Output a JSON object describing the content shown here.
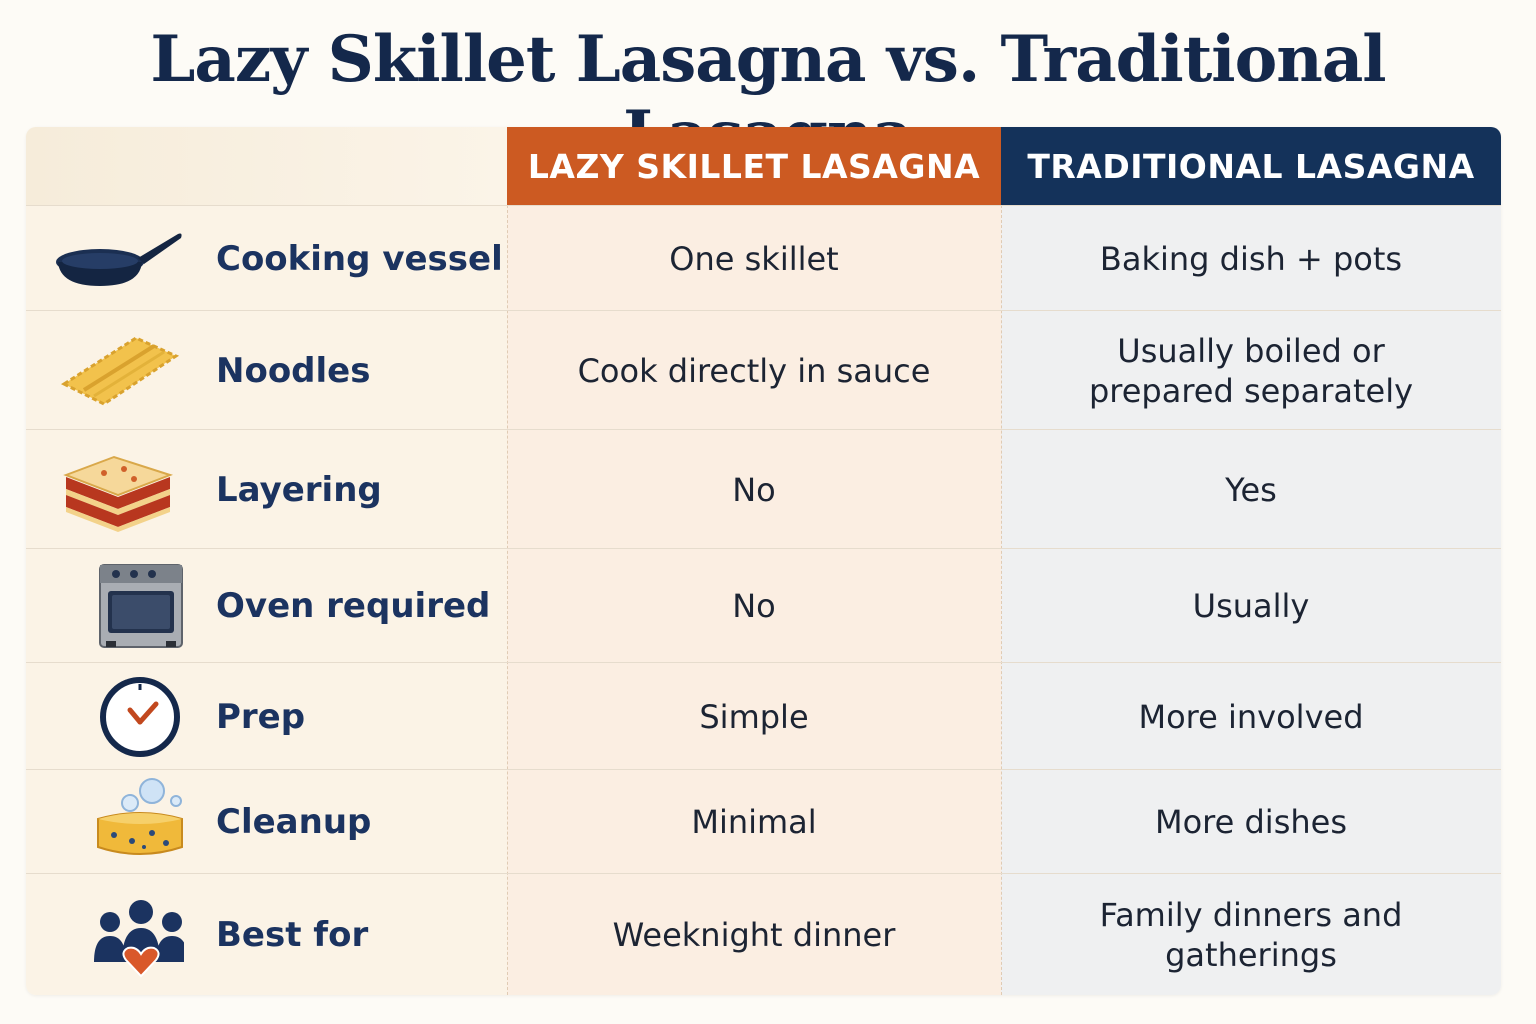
{
  "title": "Lazy Skillet  Lasagna vs. Traditional Lasagna",
  "columns": {
    "a": "LAZY SKILLET LASAGNA",
    "b": "TRADITIONAL LASAGNA"
  },
  "colors": {
    "accent_orange": "#cc5a22",
    "accent_navy": "#14325a",
    "title_text": "#14284b"
  },
  "rows": [
    {
      "icon": "skillet-icon",
      "label": "Cooking vessel",
      "a": "One skillet",
      "b": "Baking dish + pots"
    },
    {
      "icon": "noodle-icon",
      "label": "Noodles",
      "a": "Cook directly in sauce",
      "b": "Usually boiled or\nprepared separately"
    },
    {
      "icon": "lasagna-layers-icon",
      "label": "Layering",
      "a": "No",
      "b": "Yes"
    },
    {
      "icon": "oven-icon",
      "label": "Oven required",
      "a": "No",
      "b": "Usually"
    },
    {
      "icon": "clock-icon",
      "label": "Prep",
      "a": "Simple",
      "b": "More involved"
    },
    {
      "icon": "sponge-icon",
      "label": "Cleanup",
      "a": "Minimal",
      "b": "More dishes"
    },
    {
      "icon": "family-icon",
      "label": "Best for",
      "a": "Weeknight dinner",
      "b": "Family dinners and\ngatherings"
    }
  ]
}
